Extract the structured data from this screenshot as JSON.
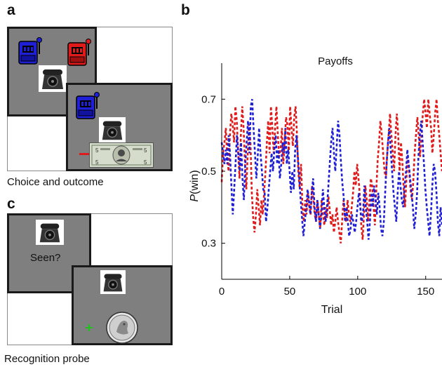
{
  "panels": {
    "a": {
      "letter": "a",
      "caption": "Choice and outcome"
    },
    "b": {
      "letter": "b"
    },
    "c": {
      "letter": "c",
      "caption": "Recognition probe",
      "prompt": "Seen?"
    }
  },
  "icons": {
    "slot_left": "blue-slot-machine-icon",
    "slot_right": "red-slot-machine-icon",
    "object": "telephone-photo",
    "reward_a": "five-dollar-bill",
    "reward_c": "quarter-coin",
    "fixation": "green-plus"
  },
  "colors": {
    "blue": "#1f1fd6",
    "red": "#e01b1b",
    "gray": "#7f7f7f",
    "green": "#21c021"
  },
  "chart_data": {
    "type": "line",
    "title": "Payoffs",
    "xlabel": "Trial",
    "ylabel_italic": "P",
    "ylabel_rest": "(win)",
    "xlim": [
      0,
      162
    ],
    "ylim": [
      0.2,
      0.8
    ],
    "xticks": [
      0,
      50,
      100,
      150
    ],
    "yticks": [
      0.3,
      0.5,
      0.7
    ],
    "ytick_labels": [
      "0.3",
      "0.5",
      "0.7"
    ],
    "grid": false,
    "series": [
      {
        "color": "red",
        "values": [
          0.47,
          0.55,
          0.58,
          0.62,
          0.54,
          0.5,
          0.6,
          0.66,
          0.63,
          0.58,
          0.68,
          0.64,
          0.55,
          0.48,
          0.6,
          0.68,
          0.62,
          0.52,
          0.45,
          0.55,
          0.63,
          0.58,
          0.44,
          0.37,
          0.33,
          0.38,
          0.45,
          0.4,
          0.35,
          0.42,
          0.38,
          0.44,
          0.5,
          0.58,
          0.64,
          0.55,
          0.68,
          0.62,
          0.55,
          0.62,
          0.68,
          0.6,
          0.54,
          0.56,
          0.62,
          0.52,
          0.58,
          0.65,
          0.63,
          0.55,
          0.68,
          0.62,
          0.57,
          0.65,
          0.68,
          0.6,
          0.5,
          0.45,
          0.52,
          0.4,
          0.36,
          0.42,
          0.38,
          0.44,
          0.4,
          0.38,
          0.46,
          0.42,
          0.38,
          0.36,
          0.42,
          0.38,
          0.34,
          0.42,
          0.38,
          0.35,
          0.4,
          0.37,
          0.43,
          0.39,
          0.35,
          0.38,
          0.33,
          0.36,
          0.4,
          0.36,
          0.33,
          0.3,
          0.36,
          0.42,
          0.38,
          0.36,
          0.42,
          0.38,
          0.36,
          0.4,
          0.44,
          0.5,
          0.46,
          0.52,
          0.48,
          0.43,
          0.35,
          0.31,
          0.38,
          0.46,
          0.42,
          0.36,
          0.42,
          0.48,
          0.46,
          0.4,
          0.35,
          0.45,
          0.53,
          0.58,
          0.64,
          0.6,
          0.55,
          0.5,
          0.48,
          0.55,
          0.6,
          0.66,
          0.6,
          0.55,
          0.5,
          0.6,
          0.66,
          0.6,
          0.5,
          0.58,
          0.53,
          0.45,
          0.4,
          0.48,
          0.54,
          0.5,
          0.45,
          0.42,
          0.47,
          0.55,
          0.6,
          0.65,
          0.6,
          0.54,
          0.6,
          0.66,
          0.7,
          0.66,
          0.62,
          0.7,
          0.66,
          0.62,
          0.55,
          0.6,
          0.66,
          0.7,
          0.64,
          0.6,
          0.55,
          0.5
        ]
      },
      {
        "color": "blue",
        "values": [
          0.58,
          0.55,
          0.52,
          0.56,
          0.52,
          0.6,
          0.55,
          0.46,
          0.38,
          0.45,
          0.52,
          0.6,
          0.55,
          0.5,
          0.58,
          0.48,
          0.42,
          0.52,
          0.58,
          0.64,
          0.55,
          0.68,
          0.7,
          0.62,
          0.55,
          0.48,
          0.54,
          0.62,
          0.55,
          0.5,
          0.45,
          0.44,
          0.36,
          0.4,
          0.45,
          0.5,
          0.55,
          0.5,
          0.56,
          0.6,
          0.52,
          0.56,
          0.48,
          0.52,
          0.58,
          0.55,
          0.62,
          0.52,
          0.56,
          0.5,
          0.44,
          0.5,
          0.45,
          0.56,
          0.6,
          0.54,
          0.48,
          0.42,
          0.37,
          0.32,
          0.36,
          0.4,
          0.45,
          0.42,
          0.38,
          0.44,
          0.48,
          0.4,
          0.36,
          0.42,
          0.38,
          0.34,
          0.38,
          0.45,
          0.4,
          0.36,
          0.4,
          0.46,
          0.52,
          0.58,
          0.62,
          0.55,
          0.5,
          0.57,
          0.64,
          0.6,
          0.53,
          0.47,
          0.43,
          0.36,
          0.4,
          0.36,
          0.32,
          0.34,
          0.38,
          0.36,
          0.33,
          0.36,
          0.4,
          0.44,
          0.4,
          0.36,
          0.38,
          0.46,
          0.4,
          0.36,
          0.31,
          0.36,
          0.44,
          0.4,
          0.46,
          0.42,
          0.38,
          0.44,
          0.4,
          0.34,
          0.32,
          0.36,
          0.44,
          0.52,
          0.58,
          0.62,
          0.56,
          0.5,
          0.44,
          0.4,
          0.36,
          0.44,
          0.5,
          0.46,
          0.42,
          0.4,
          0.46,
          0.5,
          0.56,
          0.52,
          0.48,
          0.44,
          0.4,
          0.34,
          0.38,
          0.44,
          0.54,
          0.6,
          0.64,
          0.58,
          0.52,
          0.45,
          0.4,
          0.36,
          0.32,
          0.38,
          0.46,
          0.52,
          0.5,
          0.44,
          0.36,
          0.32,
          0.4,
          0.35
        ]
      }
    ]
  }
}
